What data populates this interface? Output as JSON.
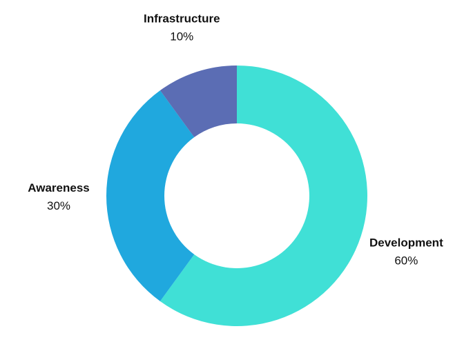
{
  "chart_data": {
    "type": "pie",
    "style": "donut",
    "title": "",
    "slices": [
      {
        "label": "Development",
        "value": 60,
        "display": "60%",
        "color": "#40E0D6"
      },
      {
        "label": "Awareness",
        "value": 30,
        "display": "30%",
        "color": "#20A8DE"
      },
      {
        "label": "Infrastructure",
        "value": 10,
        "display": "10%",
        "color": "#5B6DB4"
      }
    ],
    "legend": "none",
    "start_angle_deg": 0,
    "direction": "clockwise"
  }
}
